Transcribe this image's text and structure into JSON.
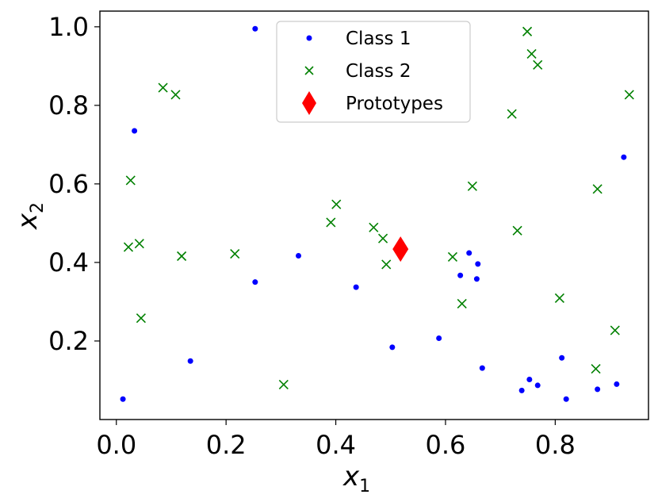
{
  "chart_data": {
    "type": "scatter",
    "title": "",
    "xlabel": "x",
    "xlabel_sub": "1",
    "ylabel": "x",
    "ylabel_sub": "2",
    "xlim": [
      -0.03,
      0.97
    ],
    "ylim": [
      0.0,
      1.04
    ],
    "xticks": [
      0.0,
      0.2,
      0.4,
      0.6,
      0.8
    ],
    "xtick_labels": [
      "0.0",
      "0.2",
      "0.4",
      "0.6",
      "0.8"
    ],
    "yticks": [
      0.2,
      0.4,
      0.6,
      0.8,
      1.0
    ],
    "ytick_labels": [
      "0.2",
      "0.4",
      "0.6",
      "0.8",
      "1.0"
    ],
    "grid": false,
    "legend_position": "top-center",
    "series": [
      {
        "name": "Class 1",
        "marker": "dot",
        "color": "#0000ff",
        "points": [
          [
            0.253,
            0.995
          ],
          [
            0.033,
            0.735
          ],
          [
            0.925,
            0.668
          ],
          [
            0.332,
            0.417
          ],
          [
            0.253,
            0.35
          ],
          [
            0.437,
            0.337
          ],
          [
            0.643,
            0.424
          ],
          [
            0.659,
            0.396
          ],
          [
            0.627,
            0.367
          ],
          [
            0.657,
            0.358
          ],
          [
            0.588,
            0.207
          ],
          [
            0.503,
            0.184
          ],
          [
            0.135,
            0.149
          ],
          [
            0.667,
            0.131
          ],
          [
            0.812,
            0.157
          ],
          [
            0.753,
            0.102
          ],
          [
            0.739,
            0.074
          ],
          [
            0.768,
            0.087
          ],
          [
            0.877,
            0.077
          ],
          [
            0.912,
            0.09
          ],
          [
            0.82,
            0.052
          ],
          [
            0.012,
            0.052
          ]
        ]
      },
      {
        "name": "Class 2",
        "marker": "x",
        "color": "#008000",
        "points": [
          [
            0.749,
            0.988
          ],
          [
            0.757,
            0.931
          ],
          [
            0.768,
            0.903
          ],
          [
            0.935,
            0.827
          ],
          [
            0.085,
            0.845
          ],
          [
            0.108,
            0.827
          ],
          [
            0.721,
            0.778
          ],
          [
            0.026,
            0.609
          ],
          [
            0.649,
            0.594
          ],
          [
            0.877,
            0.587
          ],
          [
            0.401,
            0.548
          ],
          [
            0.391,
            0.502
          ],
          [
            0.469,
            0.489
          ],
          [
            0.486,
            0.461
          ],
          [
            0.731,
            0.481
          ],
          [
            0.022,
            0.439
          ],
          [
            0.042,
            0.448
          ],
          [
            0.119,
            0.416
          ],
          [
            0.216,
            0.422
          ],
          [
            0.492,
            0.395
          ],
          [
            0.613,
            0.414
          ],
          [
            0.63,
            0.295
          ],
          [
            0.808,
            0.309
          ],
          [
            0.045,
            0.258
          ],
          [
            0.909,
            0.227
          ],
          [
            0.874,
            0.129
          ],
          [
            0.305,
            0.089
          ]
        ]
      },
      {
        "name": "Prototypes",
        "marker": "diamond",
        "color": "#ff0000",
        "points": [
          [
            0.518,
            0.434
          ]
        ]
      }
    ]
  }
}
